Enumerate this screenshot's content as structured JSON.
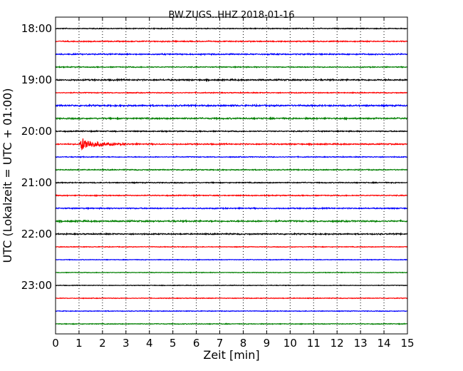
{
  "chart_data": {
    "type": "line",
    "title": "BW.ZUGS..HHZ 2018-01-16",
    "xlabel": "Zeit  [min]",
    "ylabel": "UTC (Lokalzeit = UTC + 01:00)",
    "xlim": [
      0,
      15
    ],
    "x_ticks": [
      "0",
      "1",
      "2",
      "3",
      "4",
      "5",
      "6",
      "7",
      "8",
      "9",
      "10",
      "11",
      "12",
      "13",
      "14",
      "15"
    ],
    "y_tick_labels": [
      "18:00",
      "19:00",
      "20:00",
      "21:00",
      "22:00",
      "23:00"
    ],
    "grid": "vertical dotted",
    "trace_colors": [
      "#000000",
      "#ff0000",
      "#0000ff",
      "#007f00"
    ],
    "traces": [
      {
        "start": "18:00",
        "amp": 0.5
      },
      {
        "start": "18:15",
        "amp": 0.6
      },
      {
        "start": "18:30",
        "amp": 0.7
      },
      {
        "start": "18:45",
        "amp": 0.55
      },
      {
        "start": "19:00",
        "amp": 0.8
      },
      {
        "start": "19:15",
        "amp": 0.5
      },
      {
        "start": "19:30",
        "amp": 0.85
      },
      {
        "start": "19:45",
        "amp": 0.8
      },
      {
        "start": "20:00",
        "amp": 0.6
      },
      {
        "start": "20:15",
        "amp": 0.7,
        "event_min": 1.1,
        "event_amp": 9
      },
      {
        "start": "20:30",
        "amp": 0.5
      },
      {
        "start": "20:45",
        "amp": 0.55
      },
      {
        "start": "21:00",
        "amp": 0.55
      },
      {
        "start": "21:15",
        "amp": 0.55
      },
      {
        "start": "21:30",
        "amp": 0.65
      },
      {
        "start": "21:45",
        "amp": 0.85
      },
      {
        "start": "22:00",
        "amp": 0.7
      },
      {
        "start": "22:15",
        "amp": 0.4
      },
      {
        "start": "22:30",
        "amp": 0.35
      },
      {
        "start": "22:45",
        "amp": 0.35
      },
      {
        "start": "23:00",
        "amp": 0.35
      },
      {
        "start": "23:15",
        "amp": 0.4
      },
      {
        "start": "23:30",
        "amp": 0.4
      },
      {
        "start": "23:45",
        "amp": 0.45
      }
    ]
  }
}
